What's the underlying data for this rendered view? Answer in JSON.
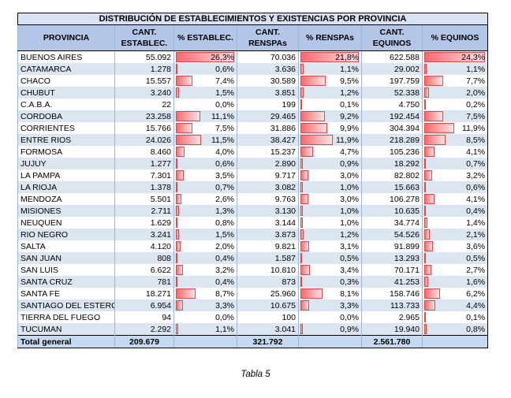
{
  "title": "DISTRIBUCIÓN DE ESTABLECIMIENTOS Y EXISTENCIAS POR PROVINCIA",
  "columns": [
    "PROVINCIA",
    "CANT.\nESTABLEC.",
    "% ESTABLEC.",
    "CANT.\nRENSPAs",
    "% RENSPAs",
    "CANT.\nEQUINOS",
    "% EQUINOS"
  ],
  "rows": [
    [
      "BUENOS AIRES",
      "55.092",
      {
        "value": 26.3,
        "label": "26,3%"
      },
      "70.036",
      {
        "value": 21.8,
        "label": "21,8%"
      },
      "622.588",
      {
        "value": 24.3,
        "label": "24,3%"
      }
    ],
    [
      "CATAMARCA",
      "1.278",
      {
        "value": 0.6,
        "label": "0,6%"
      },
      "3.636",
      {
        "value": 1.1,
        "label": "1,1%"
      },
      "29.002",
      {
        "value": 1.1,
        "label": "1,1%"
      }
    ],
    [
      "CHACO",
      "15.557",
      {
        "value": 7.4,
        "label": "7,4%"
      },
      "30.589",
      {
        "value": 9.5,
        "label": "9,5%"
      },
      "197.759",
      {
        "value": 7.7,
        "label": "7,7%"
      }
    ],
    [
      "CHUBUT",
      "3.240",
      {
        "value": 1.5,
        "label": "1,5%"
      },
      "3.851",
      {
        "value": 1.2,
        "label": "1,2%"
      },
      "52.338",
      {
        "value": 2.0,
        "label": "2,0%"
      }
    ],
    [
      "C.A.B.A.",
      "22",
      {
        "value": 0.0,
        "label": "0,0%"
      },
      "199",
      {
        "value": 0.1,
        "label": "0,1%"
      },
      "4.750",
      {
        "value": 0.2,
        "label": "0,2%"
      }
    ],
    [
      "CORDOBA",
      "23.258",
      {
        "value": 11.1,
        "label": "11,1%"
      },
      "29.465",
      {
        "value": 9.2,
        "label": "9,2%"
      },
      "192.454",
      {
        "value": 7.5,
        "label": "7,5%"
      }
    ],
    [
      "CORRIENTES",
      "15.766",
      {
        "value": 7.5,
        "label": "7,5%"
      },
      "31.886",
      {
        "value": 9.9,
        "label": "9,9%"
      },
      "304.394",
      {
        "value": 11.9,
        "label": "11,9%"
      }
    ],
    [
      "ENTRE RIOS",
      "24.026",
      {
        "value": 11.5,
        "label": "11,5%"
      },
      "38.427",
      {
        "value": 11.9,
        "label": "11,9%"
      },
      "218.289",
      {
        "value": 8.5,
        "label": "8,5%"
      }
    ],
    [
      "FORMOSA",
      "8.460",
      {
        "value": 4.0,
        "label": "4,0%"
      },
      "15.237",
      {
        "value": 4.7,
        "label": "4,7%"
      },
      "105.236",
      {
        "value": 4.1,
        "label": "4,1%"
      }
    ],
    [
      "JUJUY",
      "1.277",
      {
        "value": 0.6,
        "label": "0,6%"
      },
      "2.890",
      {
        "value": 0.9,
        "label": "0,9%"
      },
      "18.292",
      {
        "value": 0.7,
        "label": "0,7%"
      }
    ],
    [
      "LA PAMPA",
      "7.301",
      {
        "value": 3.5,
        "label": "3,5%"
      },
      "9.717",
      {
        "value": 3.0,
        "label": "3,0%"
      },
      "82.802",
      {
        "value": 3.2,
        "label": "3,2%"
      }
    ],
    [
      "LA RIOJA",
      "1.378",
      {
        "value": 0.7,
        "label": "0,7%"
      },
      "3.082",
      {
        "value": 1.0,
        "label": "1,0%"
      },
      "15.663",
      {
        "value": 0.6,
        "label": "0,6%"
      }
    ],
    [
      "MENDOZA",
      "5.501",
      {
        "value": 2.6,
        "label": "2,6%"
      },
      "9.763",
      {
        "value": 3.0,
        "label": "3,0%"
      },
      "106.278",
      {
        "value": 4.1,
        "label": "4,1%"
      }
    ],
    [
      "MISIONES",
      "2.711",
      {
        "value": 1.3,
        "label": "1,3%"
      },
      "3.130",
      {
        "value": 1.0,
        "label": "1,0%"
      },
      "10.635",
      {
        "value": 0.4,
        "label": "0,4%"
      }
    ],
    [
      "NEUQUEN",
      "1.629",
      {
        "value": 0.8,
        "label": "0,8%"
      },
      "3.144",
      {
        "value": 1.0,
        "label": "1,0%"
      },
      "34.774",
      {
        "value": 1.4,
        "label": "1,4%"
      }
    ],
    [
      "RIO NEGRO",
      "3.241",
      {
        "value": 1.5,
        "label": "1,5%"
      },
      "3.873",
      {
        "value": 1.2,
        "label": "1,2%"
      },
      "54.526",
      {
        "value": 2.1,
        "label": "2,1%"
      }
    ],
    [
      "SALTA",
      "4.120",
      {
        "value": 2.0,
        "label": "2,0%"
      },
      "9.821",
      {
        "value": 3.1,
        "label": "3,1%"
      },
      "91.899",
      {
        "value": 3.6,
        "label": "3,6%"
      }
    ],
    [
      "SAN JUAN",
      "808",
      {
        "value": 0.4,
        "label": "0,4%"
      },
      "1.587",
      {
        "value": 0.5,
        "label": "0,5%"
      },
      "13.293",
      {
        "value": 0.5,
        "label": "0,5%"
      }
    ],
    [
      "SAN LUIS",
      "6.622",
      {
        "value": 3.2,
        "label": "3,2%"
      },
      "10.810",
      {
        "value": 3.4,
        "label": "3,4%"
      },
      "70.171",
      {
        "value": 2.7,
        "label": "2,7%"
      }
    ],
    [
      "SANTA CRUZ",
      "781",
      {
        "value": 0.4,
        "label": "0,4%"
      },
      "873",
      {
        "value": 0.3,
        "label": "0,3%"
      },
      "41.253",
      {
        "value": 1.6,
        "label": "1,6%"
      }
    ],
    [
      "SANTA FE",
      "18.271",
      {
        "value": 8.7,
        "label": "8,7%"
      },
      "25.960",
      {
        "value": 8.1,
        "label": "8,1%"
      },
      "158.746",
      {
        "value": 6.2,
        "label": "6,2%"
      }
    ],
    [
      "SANTIAGO DEL ESTERO",
      "6.954",
      {
        "value": 3.3,
        "label": "3,3%"
      },
      "10.675",
      {
        "value": 3.3,
        "label": "3,3%"
      },
      "113.733",
      {
        "value": 4.4,
        "label": "4,4%"
      }
    ],
    [
      "TIERRA DEL FUEGO",
      "94",
      {
        "value": 0.0,
        "label": "0,0%"
      },
      "100",
      {
        "value": 0.0,
        "label": "0,0%"
      },
      "2.965",
      {
        "value": 0.1,
        "label": "0,1%"
      }
    ],
    [
      "TUCUMAN",
      "2.292",
      {
        "value": 1.1,
        "label": "1,1%"
      },
      "3.041",
      {
        "value": 0.9,
        "label": "0,9%"
      },
      "19.940",
      {
        "value": 0.8,
        "label": "0,8%"
      }
    ]
  ],
  "total": [
    "Total general",
    "209.679",
    "321.792",
    "2.561.780"
  ],
  "caption": "Tabla 5"
}
